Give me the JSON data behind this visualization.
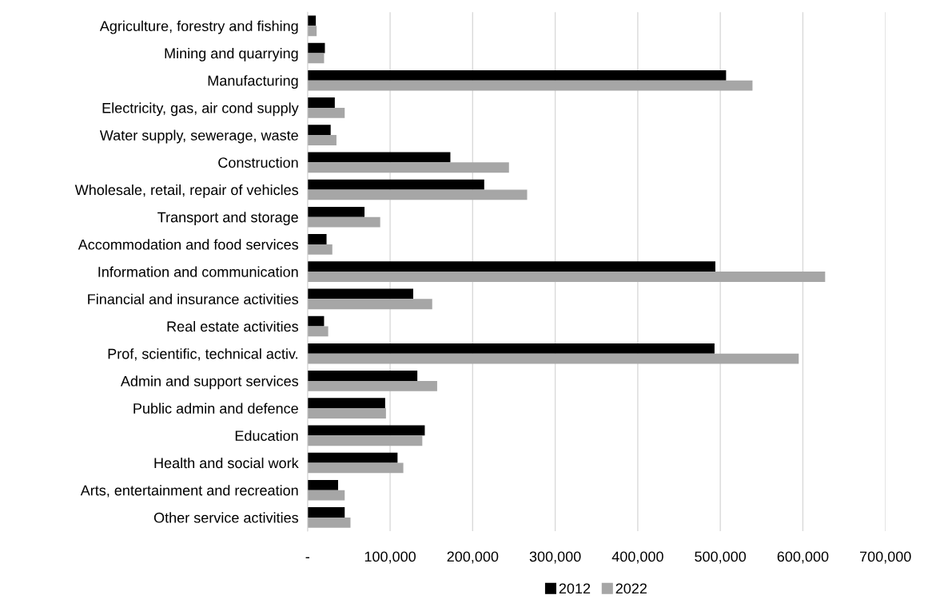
{
  "chart_data": {
    "type": "bar",
    "orientation": "horizontal",
    "categories": [
      "Agriculture, forestry and fishing",
      "Mining and quarrying",
      "Manufacturing",
      "Electricity, gas, air cond supply",
      "Water supply, sewerage, waste",
      "Construction",
      "Wholesale, retail, repair of vehicles",
      "Transport and storage",
      "Accommodation and food services",
      "Information and communication",
      "Financial and insurance activities",
      "Real estate activities",
      "Prof, scientific, technical activ.",
      "Admin and support services",
      "Public admin and defence",
      "Education",
      "Health and social work",
      "Arts, entertainment and recreation",
      "Other service activities"
    ],
    "series": [
      {
        "name": "2012",
        "color": "#000000",
        "values": [
          10000,
          21000,
          507000,
          33000,
          28000,
          173000,
          214000,
          69000,
          23000,
          494000,
          128000,
          20000,
          493000,
          133000,
          94000,
          142000,
          109000,
          37000,
          45000
        ]
      },
      {
        "name": "2022",
        "color": "#a6a6a6",
        "values": [
          11000,
          20000,
          539000,
          45000,
          35000,
          244000,
          266000,
          88000,
          30000,
          627000,
          151000,
          25000,
          595000,
          157000,
          95000,
          139000,
          116000,
          45000,
          52000
        ]
      }
    ],
    "xlim": [
      0,
      700000
    ],
    "xticks": [
      {
        "value": 0,
        "label": "-"
      },
      {
        "value": 100000,
        "label": "100,000"
      },
      {
        "value": 200000,
        "label": "200,000"
      },
      {
        "value": 300000,
        "label": "300,000"
      },
      {
        "value": 400000,
        "label": "400,000"
      },
      {
        "value": 500000,
        "label": "500,000"
      },
      {
        "value": 600000,
        "label": "600,000"
      },
      {
        "value": 700000,
        "label": "700,000"
      }
    ],
    "grid": "x",
    "legend": "bottom"
  }
}
